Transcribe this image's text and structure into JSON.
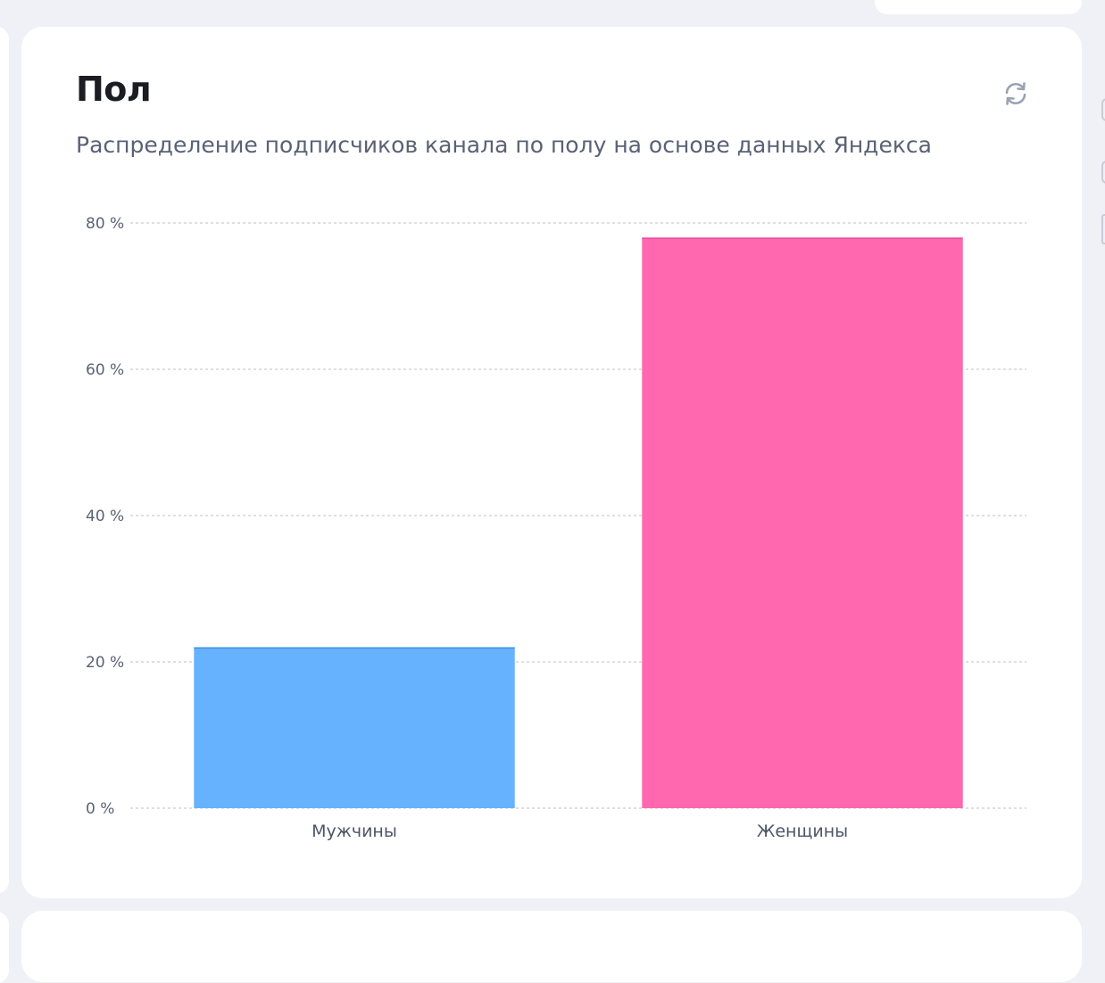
{
  "card": {
    "title": "Пол",
    "subtitle": "Распределение подписчиков канала по полу на основе данных Яндекса",
    "refresh_icon": "refresh-icon"
  },
  "chart_data": {
    "type": "bar",
    "categories": [
      "Мужчины",
      "Женщины"
    ],
    "values": [
      22,
      78
    ],
    "colors": [
      "#66b2ff",
      "#ff68ae"
    ],
    "yticks": [
      0,
      20,
      40,
      60,
      80
    ],
    "ytick_labels": [
      "0 %",
      "20 %",
      "40 %",
      "60 %",
      "80 %"
    ],
    "ylim": [
      0,
      80
    ],
    "grid": true,
    "title": "",
    "xlabel": "",
    "ylabel": ""
  }
}
